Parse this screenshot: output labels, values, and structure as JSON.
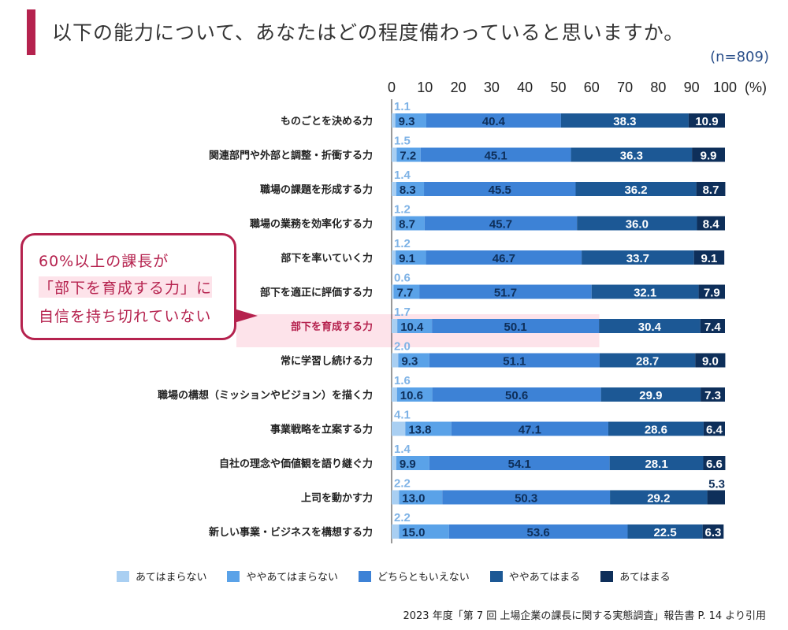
{
  "title": "以下の能力について、あなたはどの程度備わっていると思いますか。",
  "sample_size": "(n=809)",
  "callout": {
    "line1": "60%以上の課長が",
    "line2": "「部下を育成する力」に",
    "line3": "自信を持ち切れていない"
  },
  "footnote": "2023 年度「第 7 回 上場企業の課長に関する実態調査」報告書 P. 14 より引用",
  "colors": {
    "s1": "#a9cff2",
    "s2": "#5aa2e8",
    "s3": "#3d82d6",
    "s4": "#1c5895",
    "s5": "#0e2f5a",
    "highlight": "#fde3ea",
    "accent": "#b5224e"
  },
  "chart_data": {
    "type": "bar",
    "orientation": "horizontal-stacked",
    "xlim": [
      0,
      100
    ],
    "x_ticks": [
      "0",
      "10",
      "20",
      "30",
      "40",
      "50",
      "60",
      "70",
      "80",
      "90",
      "100"
    ],
    "x_unit": "(%)",
    "legend_position": "bottom",
    "highlighted_category": "部下を育成する力",
    "categories": [
      "ものごとを決める力",
      "関連部門や外部と調整・折衝する力",
      "職場の課題を形成する力",
      "職場の業務を効率化する力",
      "部下を率いていく力",
      "部下を適正に評価する力",
      "部下を育成する力",
      "常に学習し続ける力",
      "職場の構想（ミッションやビジョン）を描く力",
      "事業戦略を立案する力",
      "自社の理念や価値観を語り継ぐ力",
      "上司を動かす力",
      "新しい事業・ビジネスを構想する力"
    ],
    "series": [
      {
        "name": "あてはまらない",
        "values": [
          1.1,
          1.5,
          1.4,
          1.2,
          1.2,
          0.6,
          1.7,
          2.0,
          1.6,
          4.1,
          1.4,
          2.2,
          2.2
        ]
      },
      {
        "name": "ややあてはまらない",
        "values": [
          9.3,
          7.2,
          8.3,
          8.7,
          9.1,
          7.7,
          10.4,
          9.3,
          10.6,
          13.8,
          9.9,
          13.0,
          15.0
        ]
      },
      {
        "name": "どちらともいえない",
        "values": [
          40.4,
          45.1,
          45.5,
          45.7,
          46.7,
          51.7,
          50.1,
          51.1,
          50.6,
          47.1,
          54.1,
          50.3,
          53.6
        ]
      },
      {
        "name": "ややあてはまる",
        "values": [
          38.3,
          36.3,
          36.2,
          36.0,
          33.7,
          32.1,
          30.4,
          28.7,
          29.9,
          28.6,
          28.1,
          29.2,
          22.5
        ]
      },
      {
        "name": "あてはまる",
        "values": [
          10.9,
          9.9,
          8.7,
          8.4,
          9.1,
          7.9,
          7.4,
          9.0,
          7.3,
          6.4,
          6.6,
          5.3,
          6.3
        ]
      }
    ]
  }
}
